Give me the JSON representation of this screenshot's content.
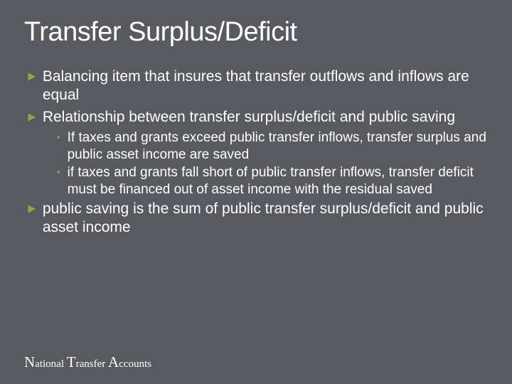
{
  "colors": {
    "background": "#585a5f",
    "text": "#ffffff",
    "accent": "#8fa84a"
  },
  "typography": {
    "title_fontsize": 38,
    "body_fontsize": 21,
    "sub_fontsize": 19,
    "footer_fontsize": 15,
    "footer_cap_fontsize": 21,
    "font_family_body": "Verdana",
    "font_family_footer": "Georgia"
  },
  "title": "Transfer Surplus/Deficit",
  "bullets": [
    {
      "level": 1,
      "text": "Balancing item that insures that transfer outflows and inflows are equal"
    },
    {
      "level": 1,
      "text": "Relationship between transfer surplus/deficit and public saving"
    },
    {
      "level": 2,
      "text": "If taxes and grants exceed public transfer inflows, transfer surplus and public asset income are saved"
    },
    {
      "level": 2,
      "text": "if taxes and grants fall short of public transfer inflows, transfer deficit must be financed out of asset income with the residual saved"
    },
    {
      "level": 1,
      "text": "public saving is the sum of public transfer surplus/deficit and public asset income"
    }
  ],
  "footer": {
    "parts": [
      "N",
      "ational ",
      "T",
      "ransfer ",
      "A",
      "ccounts"
    ]
  }
}
